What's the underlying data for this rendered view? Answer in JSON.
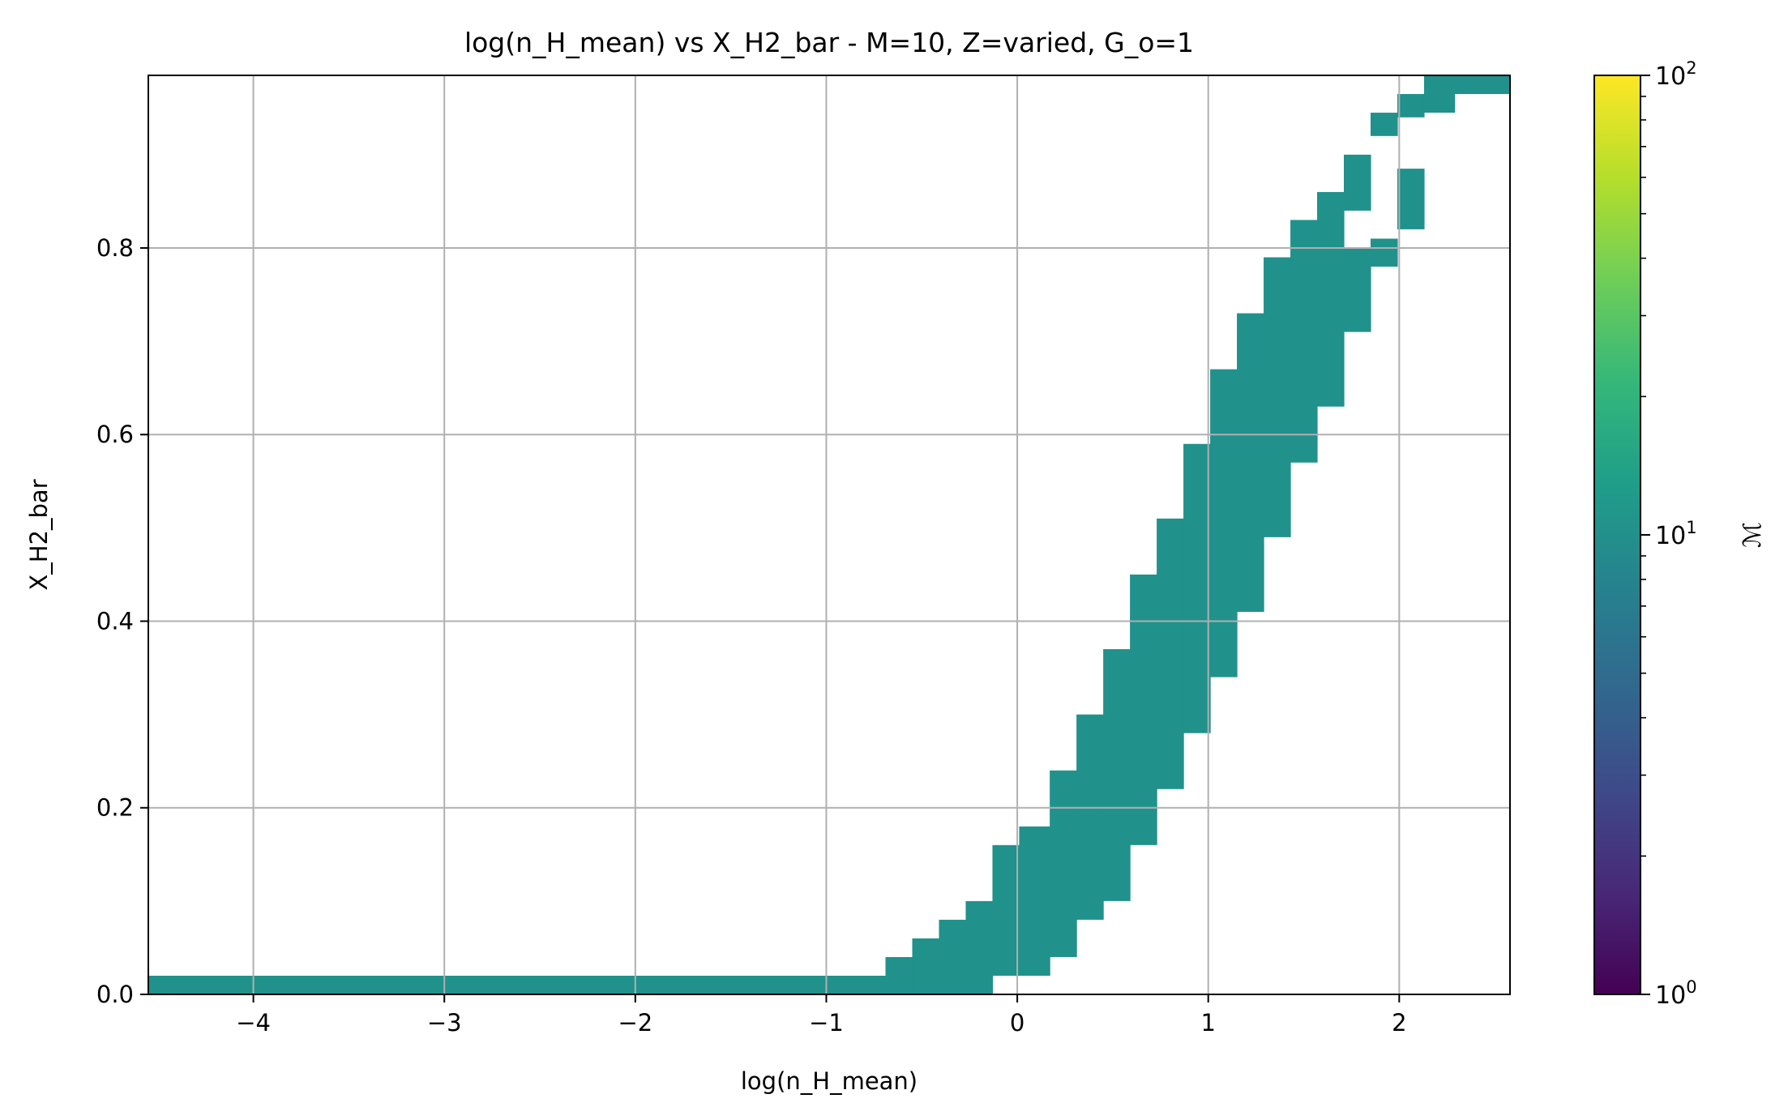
{
  "chart_data": {
    "type": "heatmap",
    "title": "log(n_H_mean) vs X_H2_bar - M=10, Z=varied, G_o=1",
    "xlabel": "log(n_H_mean)",
    "ylabel": "X_H2_bar",
    "xlim": [
      -4.55,
      2.58
    ],
    "ylim": [
      0.0,
      0.985
    ],
    "x_ticks": [
      -4,
      -3,
      -2,
      -1,
      0,
      1,
      2
    ],
    "x_tick_labels": [
      "−4",
      "−3",
      "−2",
      "−1",
      "0",
      "1",
      "2"
    ],
    "y_ticks": [
      0.0,
      0.2,
      0.4,
      0.6,
      0.8
    ],
    "y_tick_labels": [
      "0.0",
      "0.2",
      "0.4",
      "0.6",
      "0.8"
    ],
    "grid": true,
    "cell_value": 10,
    "cell_color": "#21918c",
    "colorbar": {
      "label": "ℳ",
      "scale": "log",
      "min": 1,
      "max": 100,
      "tick_labels": [
        {
          "value": 1,
          "base": "10",
          "exp": "0"
        },
        {
          "value": 10,
          "base": "10",
          "exp": "1"
        },
        {
          "value": 100,
          "base": "10",
          "exp": "2"
        }
      ],
      "colormap": [
        "#440154",
        "#482878",
        "#3e4a89",
        "#31688e",
        "#26828e",
        "#1f9e89",
        "#35b779",
        "#6ece58",
        "#b5de2b",
        "#fde725"
      ]
    },
    "cells": [
      {
        "x0": -4.55,
        "x1": -0.69,
        "y0": 0.0,
        "y1": 0.02
      },
      {
        "x0": -0.69,
        "x1": -0.55,
        "y0": 0.0,
        "y1": 0.04
      },
      {
        "x0": -0.55,
        "x1": -0.41,
        "y0": 0.0,
        "y1": 0.06
      },
      {
        "x0": -0.41,
        "x1": -0.27,
        "y0": 0.0,
        "y1": 0.08
      },
      {
        "x0": -0.27,
        "x1": -0.13,
        "y0": 0.0,
        "y1": 0.1
      },
      {
        "x0": -0.13,
        "x1": 0.01,
        "y0": 0.02,
        "y1": 0.16
      },
      {
        "x0": 0.01,
        "x1": 0.17,
        "y0": 0.02,
        "y1": 0.18
      },
      {
        "x0": 0.17,
        "x1": 0.31,
        "y0": 0.04,
        "y1": 0.24
      },
      {
        "x0": 0.31,
        "x1": 0.45,
        "y0": 0.08,
        "y1": 0.3
      },
      {
        "x0": 0.45,
        "x1": 0.59,
        "y0": 0.1,
        "y1": 0.37
      },
      {
        "x0": 0.59,
        "x1": 0.73,
        "y0": 0.16,
        "y1": 0.45
      },
      {
        "x0": 0.73,
        "x1": 0.87,
        "y0": 0.22,
        "y1": 0.51
      },
      {
        "x0": 0.87,
        "x1": 1.01,
        "y0": 0.28,
        "y1": 0.59
      },
      {
        "x0": 1.01,
        "x1": 1.15,
        "y0": 0.34,
        "y1": 0.67
      },
      {
        "x0": 1.15,
        "x1": 1.29,
        "y0": 0.41,
        "y1": 0.73
      },
      {
        "x0": 1.29,
        "x1": 1.43,
        "y0": 0.49,
        "y1": 0.79
      },
      {
        "x0": 1.43,
        "x1": 1.57,
        "y0": 0.57,
        "y1": 0.83
      },
      {
        "x0": 1.57,
        "x1": 1.71,
        "y0": 0.63,
        "y1": 0.86
      },
      {
        "x0": 1.71,
        "x1": 1.85,
        "y0": 0.71,
        "y1": 0.8
      },
      {
        "x0": 1.71,
        "x1": 1.85,
        "y0": 0.84,
        "y1": 0.9
      },
      {
        "x0": 1.85,
        "x1": 1.99,
        "y0": 0.78,
        "y1": 0.81
      },
      {
        "x0": 1.85,
        "x1": 1.99,
        "y0": 0.92,
        "y1": 0.945
      },
      {
        "x0": 1.99,
        "x1": 2.13,
        "y0": 0.82,
        "y1": 0.885
      },
      {
        "x0": 1.99,
        "x1": 2.13,
        "y0": 0.94,
        "y1": 0.965
      },
      {
        "x0": 2.13,
        "x1": 2.29,
        "y0": 0.945,
        "y1": 0.985
      },
      {
        "x0": 2.29,
        "x1": 2.58,
        "y0": 0.965,
        "y1": 0.985
      }
    ]
  }
}
